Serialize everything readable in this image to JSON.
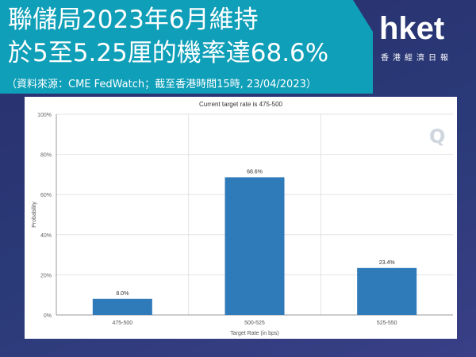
{
  "headline": {
    "line1": "聯儲局2023年6月維持",
    "line2": "於5至5.25厘的機率達68.6%",
    "source": "（資料來源：CME FedWatch；截至香港時間15時, 23/04/2023）"
  },
  "logo": {
    "text": "hket",
    "subtitle": "香港經濟日報"
  },
  "watermark": "Q",
  "colors": {
    "banner": "#0f9fb8",
    "bar": "#2f7ab8",
    "background": "#2b2f6e"
  },
  "chart_data": {
    "type": "bar",
    "title": "Current target rate is 475-500",
    "xlabel": "Target Rate (in bps)",
    "ylabel": "Probability",
    "categories": [
      "475-500",
      "500-525",
      "525-550"
    ],
    "values": [
      8.0,
      68.6,
      23.4
    ],
    "data_labels": [
      "8.0%",
      "68.6%",
      "23.4%"
    ],
    "yticks": [
      "0%",
      "20%",
      "40%",
      "60%",
      "80%",
      "100%"
    ],
    "ylim": [
      0,
      100
    ],
    "grid": true,
    "legend": "none"
  }
}
